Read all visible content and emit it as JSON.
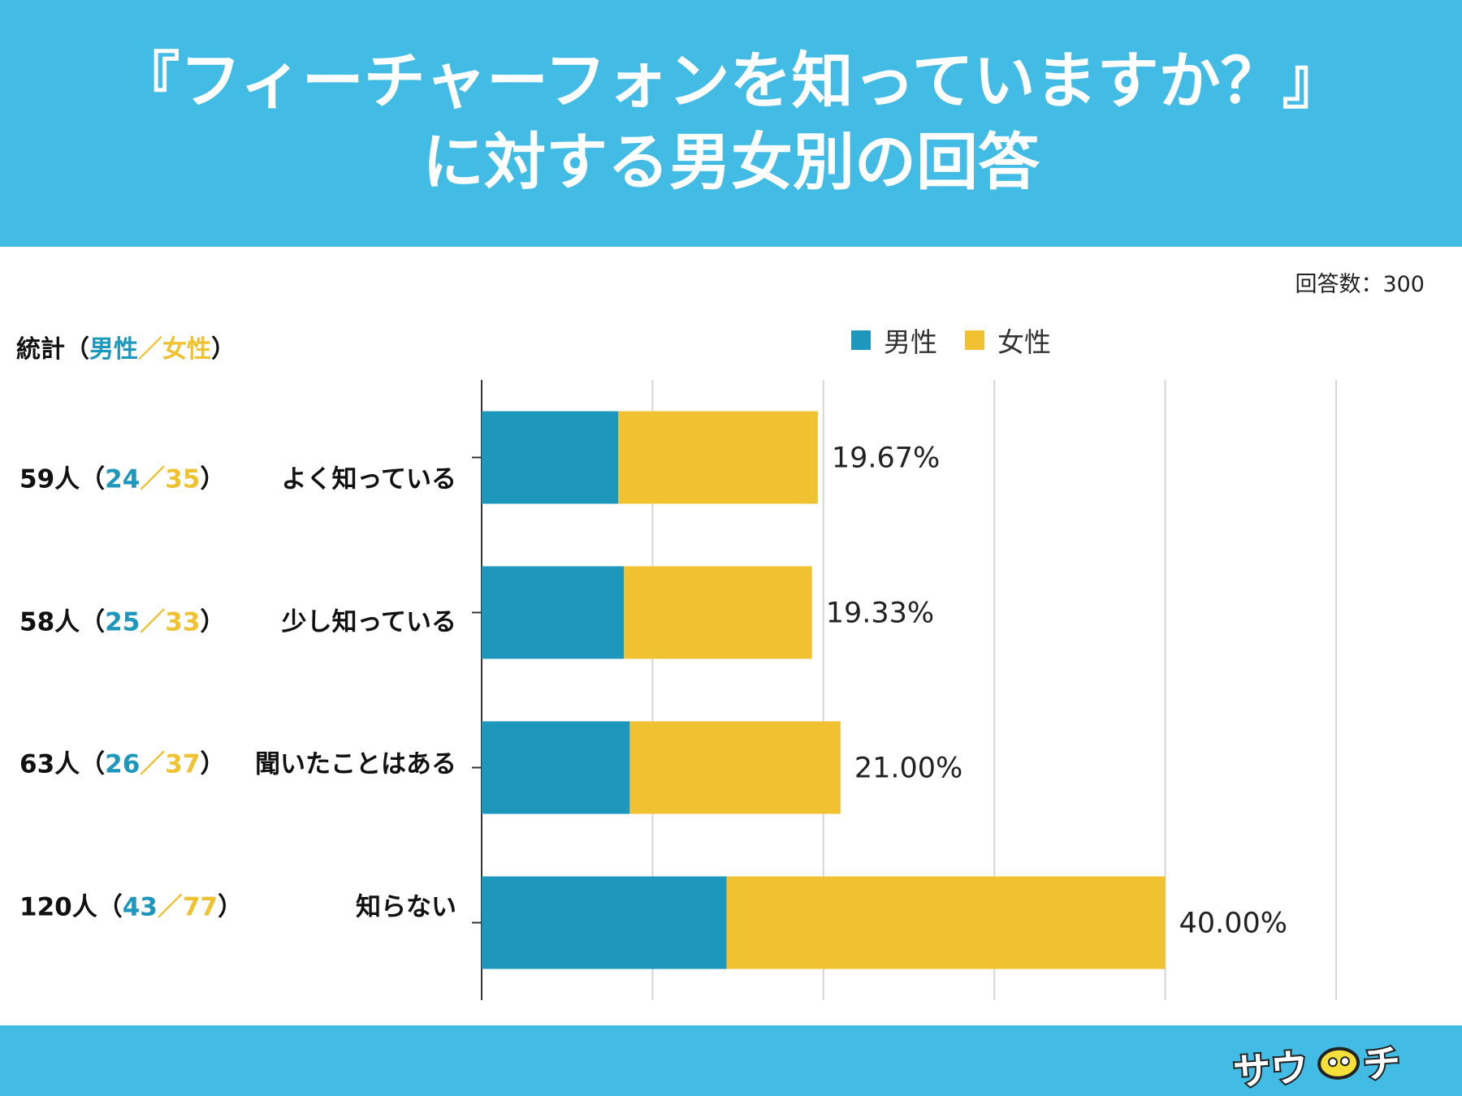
{
  "title": {
    "line1": "『フィーチャーフォンを知っていますか？』",
    "line2": "に対する男女別の回答"
  },
  "response_count": "回答数：300",
  "stats_header": {
    "prefix": "統計（",
    "male": "男性",
    "sep": "／",
    "female": "女性",
    "suffix": "）"
  },
  "legend": {
    "male": "男性",
    "female": "女性"
  },
  "colors": {
    "male": "#1e97bd",
    "female": "#f0c232",
    "header": "#43bce5",
    "grid": "#d6d6d6",
    "axis": "#333333"
  },
  "rows": [
    {
      "total": "59人",
      "male": "24",
      "female": "35"
    },
    {
      "total": "58人",
      "male": "25",
      "female": "33"
    },
    {
      "total": "63人",
      "male": "26",
      "female": "37"
    },
    {
      "total": "120人",
      "male": "43",
      "female": "77"
    }
  ],
  "chart_data": {
    "type": "bar",
    "orientation": "horizontal",
    "stacked": true,
    "categories": [
      "よく知っている",
      "少し知っている",
      "聞いたことはある",
      "知らない"
    ],
    "series": [
      {
        "name": "男性",
        "values": [
          8.0,
          8.33,
          8.67,
          14.33
        ]
      },
      {
        "name": "女性",
        "values": [
          11.67,
          11.0,
          12.33,
          25.67
        ]
      }
    ],
    "totals": [
      19.67,
      19.33,
      21.0,
      40.0
    ],
    "data_labels": [
      "19.67%",
      "19.33%",
      "21.00%",
      "40.00%"
    ],
    "xlim": [
      0,
      50
    ],
    "grid": true,
    "legend_position": "top"
  },
  "logo_text": "サウチ"
}
